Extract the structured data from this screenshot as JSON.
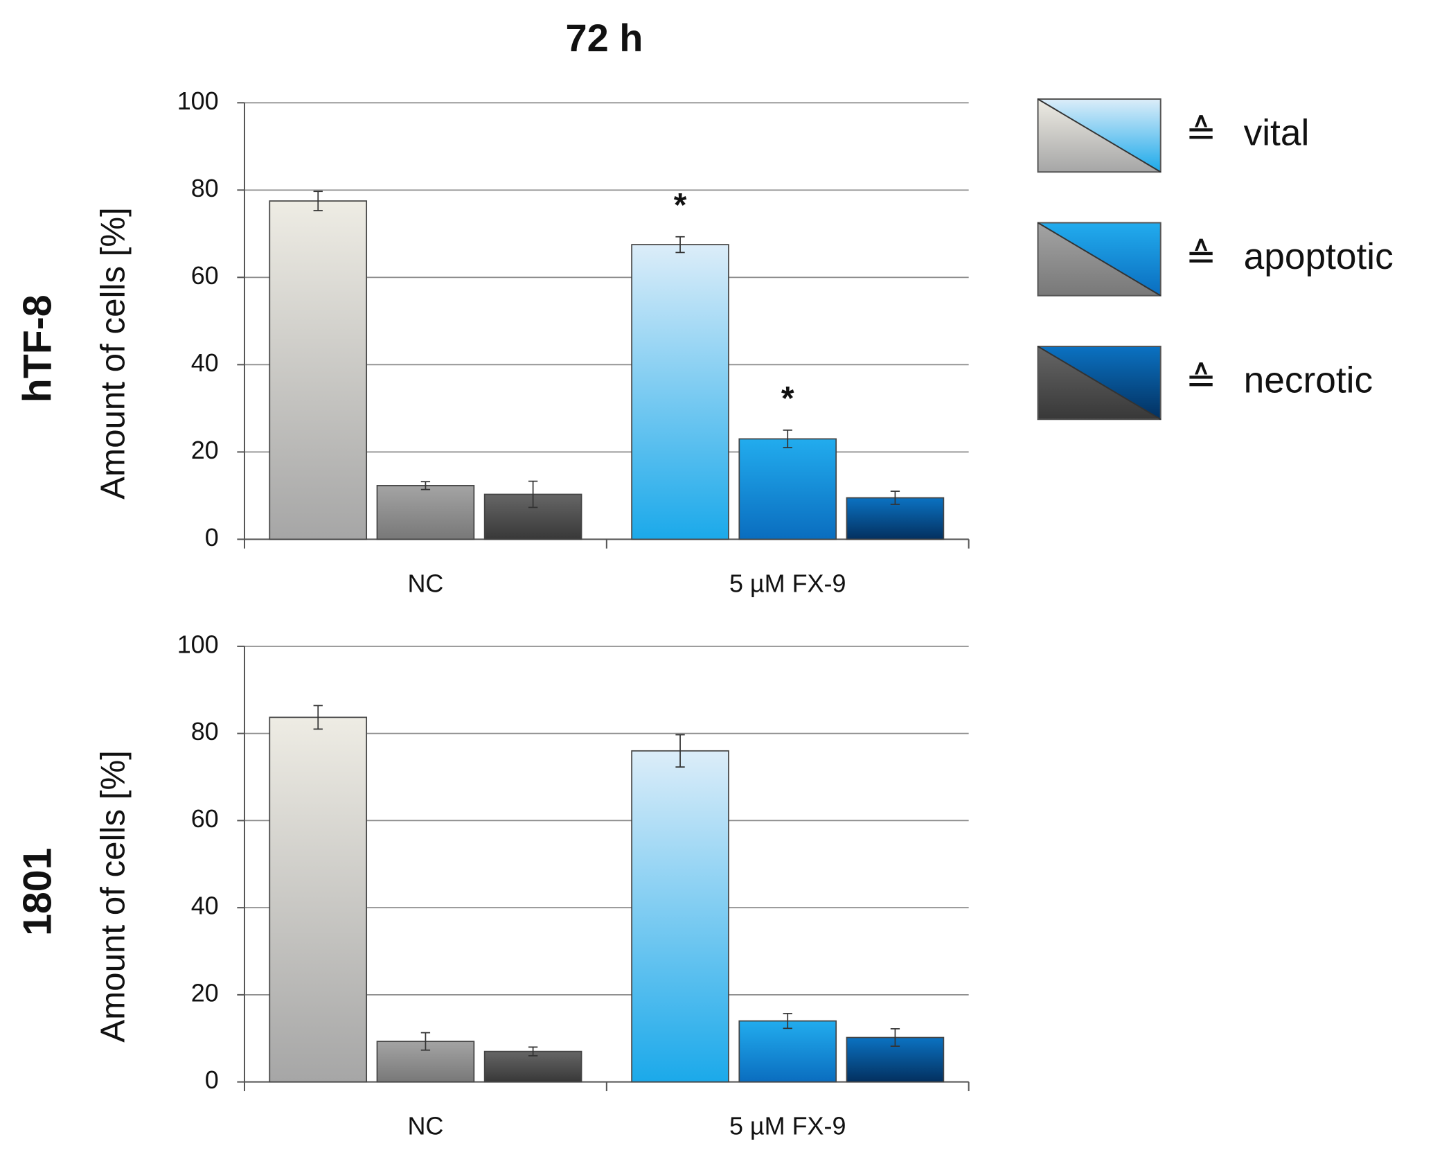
{
  "title": "72 h",
  "legend_symbol": "≙",
  "legend": [
    {
      "name": "vital",
      "colors": [
        [
          "#eeece4",
          "#a6a6a6"
        ],
        [
          "#dcedf9",
          "#1ba9ea"
        ]
      ]
    },
    {
      "name": "apoptotic",
      "colors": [
        [
          "#a4a4a4",
          "#787878"
        ],
        [
          "#22acee",
          "#0a6dbf"
        ]
      ]
    },
    {
      "name": "necrotic",
      "colors": [
        [
          "#666666",
          "#383838"
        ],
        [
          "#0b72c2",
          "#03305f"
        ]
      ]
    }
  ],
  "chart_data": [
    {
      "type": "bar",
      "row_label": "hTF-8",
      "y_label": "Amount of cells [%]",
      "categories": [
        "NC",
        "5 µM FX-9"
      ],
      "series": [
        {
          "values": [
            77.5,
            67.5
          ],
          "errors": [
            2.2,
            1.8
          ],
          "annotations": [
            null,
            "*"
          ]
        },
        {
          "values": [
            12.3,
            23
          ],
          "errors": [
            0.9,
            2
          ],
          "annotations": [
            null,
            "*"
          ]
        },
        {
          "values": [
            10.3,
            9.5
          ],
          "errors": [
            3,
            1.5
          ]
        }
      ],
      "ylim": [
        0,
        100
      ],
      "yticks": [
        0,
        20,
        40,
        60,
        80,
        100
      ],
      "grid": true
    },
    {
      "type": "bar",
      "row_label": "1801",
      "y_label": "Amount of cells [%]",
      "categories": [
        "NC",
        "5 µM FX-9"
      ],
      "series": [
        {
          "values": [
            83.7,
            76
          ],
          "errors": [
            2.7,
            3.7
          ]
        },
        {
          "values": [
            9.3,
            14
          ],
          "errors": [
            2,
            1.7
          ]
        },
        {
          "values": [
            7,
            10.2
          ],
          "errors": [
            1,
            2
          ]
        }
      ],
      "ylim": [
        0,
        100
      ],
      "yticks": [
        0,
        20,
        40,
        60,
        80,
        100
      ],
      "grid": true
    }
  ]
}
